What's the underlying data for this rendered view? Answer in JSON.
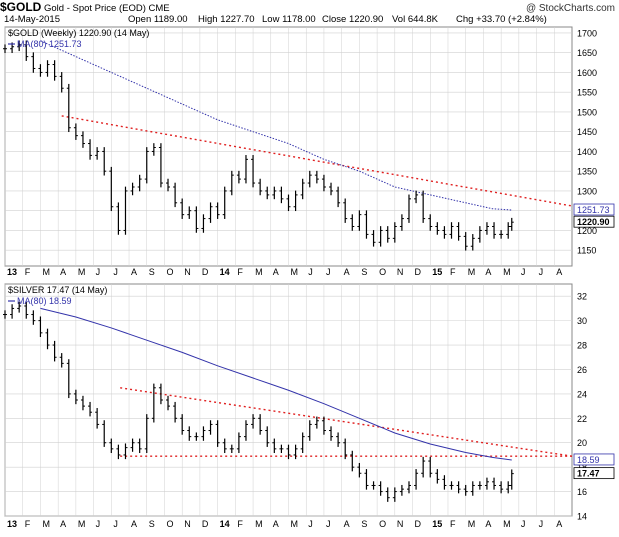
{
  "header": {
    "symbol": "$GOLD",
    "name": "Gold - Spot Price (EOD)",
    "exchange": "CME",
    "watermark": "@ StockCharts.com",
    "date": "14-May-2015",
    "open_label": "Open",
    "open": "1189.00",
    "high_label": "High",
    "high": "1227.70",
    "low_label": "Low",
    "low": "1178.00",
    "close_label": "Close",
    "close": "1220.90",
    "vol_label": "Vol",
    "vol": "644.8K",
    "chg_label": "Chg",
    "chg": "+33.70 (+2.84%)"
  },
  "colors": {
    "price": "#000000",
    "ma": "#3333aa",
    "trend": "#e02020",
    "grid": "#d0d0d0",
    "gold_tag": "#3333aa"
  },
  "chart_data": [
    {
      "type": "line",
      "legend": "$GOLD (Weekly) 1220.90 (14 May)",
      "ma_legend": "MA(80) 1251.73",
      "ylim": [
        1110,
        1715
      ],
      "y_ticks": [
        1150,
        1200,
        1250,
        1300,
        1350,
        1400,
        1450,
        1500,
        1550,
        1600,
        1650,
        1700
      ],
      "x_tick_labels": [
        "13",
        "F",
        "M",
        "A",
        "M",
        "J",
        "J",
        "A",
        "S",
        "O",
        "N",
        "D",
        "14",
        "F",
        "M",
        "A",
        "M",
        "J",
        "J",
        "A",
        "S",
        "O",
        "N",
        "D",
        "15",
        "F",
        "M",
        "A",
        "M",
        "J",
        "J",
        "A"
      ],
      "last_price_label": "1220.90",
      "ma_label": "1251.73",
      "series": [
        {
          "name": "$GOLD (Weekly)",
          "x": [
            0,
            0.4,
            0.8,
            1.2,
            1.6,
            2,
            2.4,
            2.8,
            3.2,
            3.6,
            4,
            4.4,
            4.8,
            5.2,
            5.6,
            6,
            6.4,
            6.8,
            7.2,
            7.6,
            8,
            8.4,
            8.8,
            9.2,
            9.6,
            10,
            10.4,
            10.8,
            11.2,
            11.6,
            12,
            12.4,
            12.8,
            13.2,
            13.6,
            14,
            14.4,
            14.8,
            15.2,
            15.6,
            16,
            16.4,
            16.8,
            17.2,
            17.6,
            18,
            18.4,
            18.8,
            19.2,
            19.6,
            20,
            20.4,
            20.8,
            21.2,
            21.6,
            22,
            22.4,
            22.8,
            23.2,
            23.6,
            24,
            24.4,
            24.8,
            25.2,
            25.6,
            26,
            26.4,
            26.8,
            27.2,
            27.6,
            28,
            28.4,
            28.6
          ],
          "values": [
            1660,
            1665,
            1670,
            1640,
            1610,
            1600,
            1620,
            1590,
            1560,
            1460,
            1440,
            1420,
            1390,
            1400,
            1350,
            1260,
            1200,
            1300,
            1310,
            1330,
            1400,
            1410,
            1320,
            1310,
            1270,
            1240,
            1250,
            1205,
            1230,
            1260,
            1240,
            1300,
            1340,
            1330,
            1380,
            1320,
            1300,
            1290,
            1300,
            1280,
            1260,
            1290,
            1320,
            1340,
            1330,
            1310,
            1300,
            1270,
            1230,
            1210,
            1240,
            1190,
            1170,
            1200,
            1180,
            1210,
            1230,
            1280,
            1290,
            1230,
            1210,
            1200,
            1190,
            1210,
            1185,
            1160,
            1180,
            1200,
            1210,
            1190,
            1190,
            1210,
            1220.9
          ]
        },
        {
          "name": "MA(80)",
          "x": [
            2,
            4,
            6,
            8,
            10,
            12,
            14,
            16,
            18,
            20,
            22,
            24,
            26,
            27.5,
            28.6
          ],
          "values": [
            1680,
            1640,
            1600,
            1560,
            1520,
            1480,
            1450,
            1420,
            1380,
            1350,
            1310,
            1290,
            1270,
            1255,
            1251.73
          ]
        }
      ],
      "trendlines": [
        {
          "x": [
            3.2,
            32
          ],
          "values": [
            1490,
            1262
          ]
        }
      ]
    },
    {
      "type": "line",
      "legend": "$SILVER 17.47 (14 May)",
      "ma_legend": "MA(80) 18.59",
      "ylim": [
        14,
        33
      ],
      "y_ticks": [
        14,
        16,
        18,
        20,
        22,
        24,
        26,
        28,
        30,
        32
      ],
      "x_tick_labels": [
        "13",
        "F",
        "M",
        "A",
        "M",
        "J",
        "J",
        "A",
        "S",
        "O",
        "N",
        "D",
        "14",
        "F",
        "M",
        "A",
        "M",
        "J",
        "J",
        "A",
        "S",
        "O",
        "N",
        "D",
        "15",
        "F",
        "M",
        "A",
        "M",
        "J",
        "J",
        "A"
      ],
      "last_price_label": "17.47",
      "ma_label": "18.59",
      "series": [
        {
          "name": "$SILVER",
          "x": [
            0,
            0.4,
            0.8,
            1.2,
            1.6,
            2,
            2.4,
            2.8,
            3.2,
            3.6,
            4,
            4.4,
            4.8,
            5.2,
            5.6,
            6,
            6.4,
            6.8,
            7.2,
            7.6,
            8,
            8.4,
            8.8,
            9.2,
            9.6,
            10,
            10.4,
            10.8,
            11.2,
            11.6,
            12,
            12.4,
            12.8,
            13.2,
            13.6,
            14,
            14.4,
            14.8,
            15.2,
            15.6,
            16,
            16.4,
            16.8,
            17.2,
            17.6,
            18,
            18.4,
            18.8,
            19.2,
            19.6,
            20,
            20.4,
            20.8,
            21.2,
            21.6,
            22,
            22.4,
            22.8,
            23.2,
            23.6,
            24,
            24.4,
            24.8,
            25.2,
            25.6,
            26,
            26.4,
            26.8,
            27.2,
            27.6,
            28,
            28.4,
            28.6
          ],
          "values": [
            30.5,
            31,
            31.2,
            30.5,
            30,
            29,
            28,
            27,
            26.5,
            24,
            23.5,
            23,
            22.5,
            21.5,
            20,
            19.5,
            19,
            19.6,
            20,
            19.5,
            22,
            24.5,
            23.5,
            23,
            22,
            21,
            20.5,
            20.5,
            21,
            21.5,
            20,
            19.5,
            19.5,
            20.5,
            21.5,
            22,
            21,
            20,
            19.5,
            19.5,
            19,
            19.5,
            20.5,
            21.5,
            21.8,
            21,
            20.5,
            20,
            19,
            18,
            17.5,
            16.5,
            16.5,
            16,
            15.5,
            16,
            16.2,
            16.5,
            17.5,
            18.5,
            17.5,
            17,
            16.5,
            16.5,
            16.2,
            16,
            16.5,
            16.5,
            16.8,
            16.5,
            16.2,
            16.5,
            17.47
          ]
        },
        {
          "name": "MA(80)",
          "x": [
            2,
            4,
            6,
            8,
            10,
            12,
            14,
            16,
            18,
            20,
            22,
            24,
            26,
            27.5,
            28.6
          ],
          "values": [
            31,
            30.3,
            29.4,
            28.4,
            27.4,
            26.3,
            25.3,
            24.3,
            23.2,
            22,
            20.8,
            19.9,
            19.2,
            18.8,
            18.59
          ]
        }
      ],
      "trendlines": [
        {
          "x": [
            6.5,
            32
          ],
          "values": [
            24.5,
            18.9
          ]
        },
        {
          "x": [
            6.5,
            32
          ],
          "values": [
            18.9,
            18.9
          ]
        }
      ]
    }
  ]
}
